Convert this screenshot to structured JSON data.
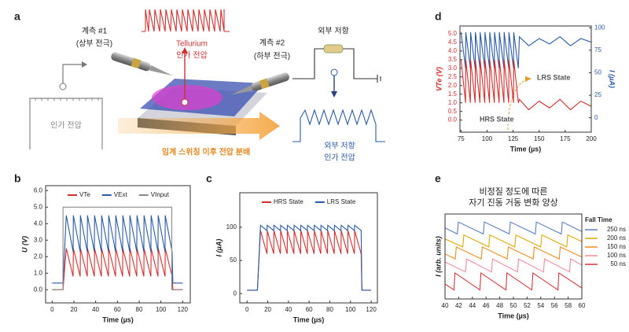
{
  "diagram": {
    "panel_label": "a",
    "probe1": [
      "계측 #1",
      "(상부 전극)"
    ],
    "tellurium": [
      "Tellurium",
      "인가 전압"
    ],
    "probe2": [
      "계측 #2",
      "(하부 전극)"
    ],
    "resistor": "외부 저항",
    "output": [
      "외부 저항",
      "인가 전압"
    ],
    "input": "인가 전압",
    "division": "임계 스위칭 이후 전압 분배"
  },
  "chart_data": [
    {
      "type": "line",
      "panel_label": "b",
      "xlabel": "Time (µs)",
      "ylabel": "U (V)",
      "xlim": [
        -6,
        127
      ],
      "xticks": [
        0,
        20,
        40,
        60,
        80,
        100,
        120
      ],
      "ylim": [
        -0.8,
        6.3
      ],
      "yticks": [
        {
          "value": 0,
          "label": "0.0"
        },
        {
          "value": 1,
          "label": "1.0"
        },
        {
          "value": 2,
          "label": "2.0"
        },
        {
          "value": 3,
          "label": "3.0"
        },
        {
          "value": 4,
          "label": "4.0"
        },
        {
          "value": 5,
          "label": "5.0"
        },
        {
          "value": 6,
          "label": "6.0"
        }
      ],
      "legend": "top",
      "x": [
        0,
        10,
        13,
        19.3,
        19.5,
        25.8,
        26,
        32.3,
        32.5,
        38.8,
        39,
        45.3,
        45.5,
        51.8,
        52,
        58.3,
        58.5,
        64.8,
        65,
        71.3,
        71.5,
        77.8,
        78,
        84.3,
        84.5,
        90.8,
        91,
        97.3,
        97.5,
        103.8,
        104,
        110.3,
        111,
        120
      ],
      "series": [
        {
          "name": "VTe",
          "color": "#d42d2d",
          "values": [
            0,
            0,
            2.5,
            0.8,
            2.5,
            0.8,
            2.5,
            0.8,
            2.5,
            0.8,
            2.5,
            0.8,
            2.5,
            0.8,
            2.5,
            0.8,
            2.5,
            0.8,
            2.5,
            0.8,
            2.5,
            0.8,
            2.5,
            0.8,
            2.5,
            0.8,
            2.5,
            0.8,
            2.5,
            0.8,
            2.5,
            0.8,
            0,
            0
          ]
        },
        {
          "name": "VExt",
          "color": "#2a59a8",
          "values": [
            0.4,
            0.4,
            4.5,
            2.3,
            4.5,
            2.3,
            4.5,
            2.3,
            4.5,
            2.3,
            4.5,
            2.3,
            4.5,
            2.3,
            4.5,
            2.3,
            4.5,
            2.3,
            4.5,
            2.3,
            4.5,
            2.3,
            4.5,
            2.3,
            4.5,
            2.3,
            4.5,
            2.3,
            4.5,
            2.3,
            4.5,
            2.3,
            0.4,
            0.4
          ]
        },
        {
          "name": "VInput",
          "color": "#8a8a8a",
          "x": [
            0,
            10,
            10,
            110,
            110,
            120
          ],
          "values": [
            0,
            0,
            5,
            5,
            0,
            0
          ]
        }
      ]
    },
    {
      "type": "line",
      "panel_label": "c",
      "xlabel": "Time (µs)",
      "ylabel": "I (µA)",
      "xlim": [
        -7,
        126
      ],
      "xticks": [
        0,
        20,
        40,
        60,
        80,
        100,
        120
      ],
      "ylim": [
        -14,
        152
      ],
      "yticks": [
        0,
        50,
        100
      ],
      "legend": "top",
      "x": [
        0,
        10,
        13,
        19.3,
        19.5,
        25.8,
        26,
        32.3,
        32.5,
        38.8,
        39,
        45.3,
        45.5,
        51.8,
        52,
        58.3,
        58.5,
        64.8,
        65,
        71.3,
        71.5,
        77.8,
        78,
        84.3,
        84.5,
        90.8,
        91,
        97.3,
        97.5,
        103.8,
        104,
        110.3,
        111,
        120
      ],
      "series": [
        {
          "name": "HRS State",
          "color": "#d42d2d",
          "values": [
            5,
            5,
            95,
            60,
            95,
            60,
            95,
            60,
            95,
            60,
            95,
            60,
            95,
            60,
            95,
            60,
            95,
            60,
            95,
            60,
            95,
            60,
            95,
            60,
            95,
            60,
            95,
            60,
            95,
            60,
            95,
            60,
            5,
            5
          ]
        },
        {
          "name": "LRS State",
          "color": "#2a59a8",
          "values": [
            5,
            5,
            103,
            95,
            103,
            95,
            103,
            95,
            103,
            95,
            103,
            95,
            103,
            95,
            103,
            95,
            103,
            95,
            103,
            95,
            103,
            95,
            103,
            95,
            103,
            95,
            103,
            95,
            103,
            95,
            103,
            95,
            5,
            5
          ]
        }
      ]
    },
    {
      "type": "line",
      "panel_label": "d",
      "xlabel": "Time (µs)",
      "ylabel": "VTe (V)",
      "y2label": "I (µA)",
      "xlim": [
        74,
        200
      ],
      "xticks": [
        75,
        100,
        125,
        150,
        175,
        200
      ],
      "ylim": [
        -0.7,
        5.45
      ],
      "yticks": [
        {
          "value": 0,
          "label": "0.0"
        },
        {
          "value": 0.5,
          "label": "0.5"
        },
        {
          "value": 1,
          "label": "1.0"
        },
        {
          "value": 1.5,
          "label": "1.5"
        },
        {
          "value": 2,
          "label": "2.0"
        },
        {
          "value": 2.5,
          "label": "2.5"
        },
        {
          "value": 3,
          "label": "3.0"
        },
        {
          "value": 3.5,
          "label": "3.5"
        },
        {
          "value": 4,
          "label": "4.0"
        },
        {
          "value": 4.5,
          "label": "4.5"
        },
        {
          "value": 5,
          "label": "5.0"
        }
      ],
      "y2lim": [
        -16,
        102
      ],
      "y2ticks": [
        0,
        25,
        50,
        75,
        100
      ],
      "annotations": [
        "LRS State",
        "HRS State"
      ],
      "x": [
        75,
        79.4,
        79.6,
        84,
        84.2,
        88.6,
        88.8,
        93.2,
        93.4,
        97.8,
        98,
        102.4,
        102.6,
        107,
        107.2,
        111.6,
        111.8,
        116.2,
        116.4,
        120.8,
        121,
        125.4,
        125.6,
        130,
        131,
        140,
        150,
        160,
        170,
        180,
        190,
        200
      ],
      "series": [
        {
          "name": "I",
          "color": "#2a59a8",
          "axis": "y2",
          "values": [
            95,
            55,
            95,
            55,
            95,
            55,
            95,
            55,
            95,
            55,
            95,
            55,
            95,
            55,
            95,
            55,
            95,
            55,
            95,
            55,
            95,
            55,
            95,
            55,
            90,
            80,
            88,
            82,
            90,
            80,
            88,
            84
          ]
        },
        {
          "name": "VTe",
          "color": "#d42d2d",
          "values": [
            3.5,
            1,
            3.5,
            1,
            3.5,
            1,
            3.5,
            1,
            3.5,
            1,
            3.5,
            1,
            3.5,
            1,
            3.5,
            1,
            3.5,
            1,
            3.5,
            1,
            3.5,
            1,
            3.5,
            1,
            1.2,
            0.6,
            1.1,
            0.7,
            1.2,
            0.6,
            1.1,
            0.8
          ]
        }
      ]
    },
    {
      "type": "line",
      "panel_label": "e",
      "title": [
        "비정질 정도에 따른",
        "자기 진동 거동 변화 양상"
      ],
      "xlabel": "Time (µs)",
      "ylabel": "I (arb. units)",
      "xlim": [
        40,
        60
      ],
      "xticks": [
        40,
        42,
        44,
        46,
        48,
        50,
        52,
        54,
        56,
        58,
        60
      ],
      "ylim": [
        1.5,
        10
      ],
      "legend": "right",
      "legend_title": "Fall Time",
      "series": [
        {
          "name": "250 ns",
          "color": "#5b7fbf",
          "x": [
            40,
            41.8,
            41.95,
            45.6,
            45.75,
            49.4,
            49.55,
            53.2,
            53.35,
            57,
            57.15,
            60
          ],
          "values": [
            8.6,
            8,
            9.2,
            8,
            9.2,
            8,
            9.2,
            8,
            9.2,
            8,
            9.2,
            8.25
          ]
        },
        {
          "name": "200 ns",
          "color": "#e0a800",
          "x": [
            40,
            42.6,
            42.75,
            46.4,
            46.55,
            50.2,
            50.35,
            54,
            54.15,
            57.8,
            57.95,
            60
          ],
          "values": [
            7.5,
            6.7,
            7.9,
            6.7,
            7.9,
            6.7,
            7.9,
            6.7,
            7.9,
            6.7,
            7.9,
            7.25
          ]
        },
        {
          "name": "150 ns",
          "color": "#f08c1e",
          "x": [
            40,
            41.5,
            41.65,
            45.3,
            45.45,
            49.1,
            49.25,
            52.9,
            53.05,
            56.7,
            56.85,
            60
          ],
          "values": [
            6,
            5.5,
            6.7,
            5.5,
            6.7,
            5.5,
            6.7,
            5.5,
            6.7,
            5.5,
            6.7,
            5.7
          ]
        },
        {
          "name": "100 ns",
          "color": "#f08a9a",
          "x": [
            40,
            43,
            43.15,
            46.8,
            46.95,
            50.6,
            50.75,
            54.4,
            54.55,
            58.2,
            58.35,
            60
          ],
          "values": [
            5.2,
            4.2,
            5.5,
            4.2,
            5.5,
            4.2,
            5.5,
            4.2,
            5.5,
            4.2,
            5.5,
            4.9
          ]
        },
        {
          "name": "50 ns",
          "color": "#d9343a",
          "x": [
            40,
            41.3,
            41.45,
            45.1,
            45.25,
            48.9,
            49.05,
            52.7,
            52.85,
            56.5,
            56.65,
            60
          ],
          "values": [
            3,
            2.4,
            4.1,
            2.4,
            4.1,
            2.4,
            4.1,
            2.4,
            4.1,
            2.4,
            4.1,
            2.6
          ]
        }
      ]
    }
  ]
}
